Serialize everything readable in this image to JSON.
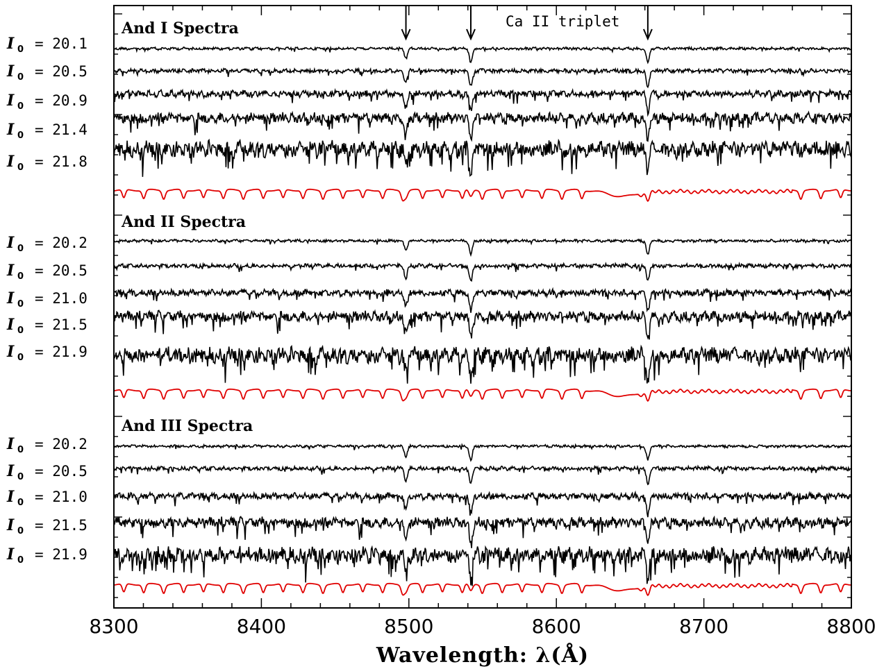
{
  "chart_data": {
    "type": "line",
    "xlabel": "Wavelength: λ(Å)",
    "xlim": [
      8300,
      8800
    ],
    "x_ticks": [
      "8300",
      "8400",
      "8500",
      "8600",
      "8700",
      "8800"
    ],
    "annotation": {
      "text": "Ca II triplet",
      "arrow_wavelengths": [
        8498,
        8542,
        8662
      ]
    },
    "panels": [
      {
        "title": "And I Spectra",
        "label_prefix": "I",
        "label_subscript": "0",
        "spectra": [
          {
            "label": "= 20.1"
          },
          {
            "label": "= 20.5"
          },
          {
            "label": "= 20.9"
          },
          {
            "label": "= 21.4"
          },
          {
            "label": "= 21.8"
          }
        ]
      },
      {
        "title": "And II Spectra",
        "label_prefix": "I",
        "label_subscript": "0",
        "spectra": [
          {
            "label": "= 20.2"
          },
          {
            "label": "= 20.5"
          },
          {
            "label": "= 21.0"
          },
          {
            "label": "= 21.5"
          },
          {
            "label": "= 21.9"
          }
        ]
      },
      {
        "title": "And III Spectra",
        "label_prefix": "I",
        "label_subscript": "0",
        "spectra": [
          {
            "label": "= 20.2"
          },
          {
            "label": "= 20.5"
          },
          {
            "label": "= 21.0"
          },
          {
            "label": "= 21.5"
          },
          {
            "label": "= 21.9"
          }
        ]
      }
    ],
    "colors": {
      "spectra": "#000000",
      "template": "#e00000",
      "frame": "#000000"
    }
  }
}
